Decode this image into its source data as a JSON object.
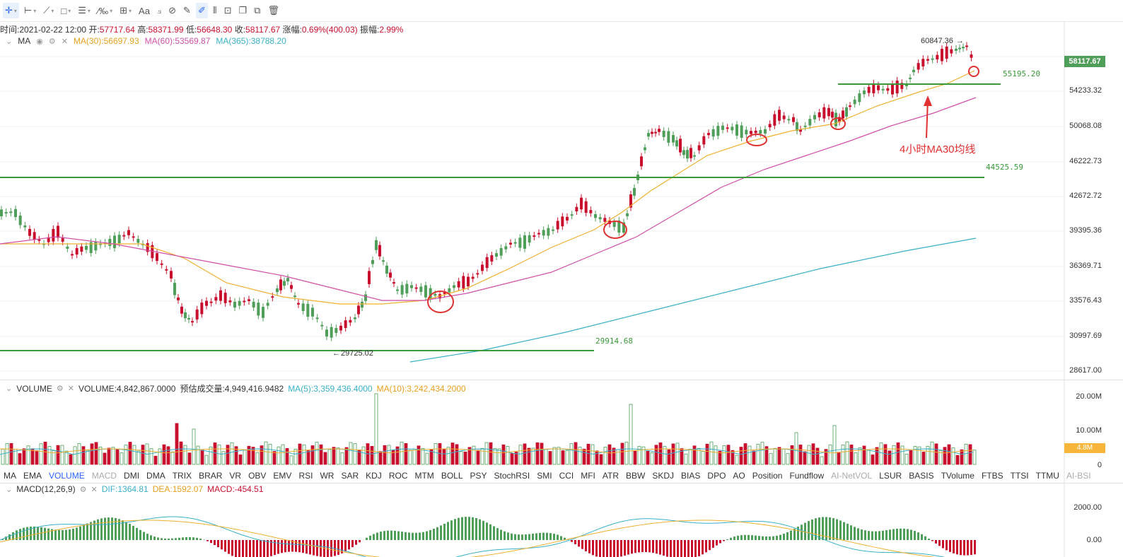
{
  "toolbar": {
    "text_tool": "Aa"
  },
  "ohlc": {
    "time_label": "时间:",
    "time": "2021-02-22 12:00",
    "open_label": "开:",
    "open": "57717.64",
    "high_label": "高:",
    "high": "58371.99",
    "low_label": "低:",
    "low": "56648.30",
    "close_label": "收:",
    "close": "58117.67",
    "change_label": "涨幅:",
    "change": "0.69%(400.03)",
    "amp_label": "振幅:",
    "amp": "2.99%"
  },
  "ma_legend": {
    "name": "MA",
    "ma30": "MA(30):56697.93",
    "ma60": "MA(60):53569.87",
    "ma365": "MA(365):38788.20"
  },
  "price_axis": [
    "58117.67",
    "54233.32",
    "50068.08",
    "46222.73",
    "42672.72",
    "39395.36",
    "36369.71",
    "33576.43",
    "30997.69",
    "28617.00"
  ],
  "current_price": "58117.67",
  "annotations": {
    "high_label": "60847.36",
    "low_label": "29725.02",
    "level_55195": "55195.20",
    "level_44525": "44525.59",
    "level_29914": "29914.68",
    "ma30_note": "4小时MA30均线"
  },
  "volume": {
    "name": "VOLUME",
    "value": "VOLUME:4,842,867.0000",
    "estimate": "预估成交量:4,949,416.9482",
    "ma5": "MA(5):3,359,436.4000",
    "ma10": "MA(10):3,242,434.2000",
    "axis": [
      "20.00M",
      "10.00M",
      "0"
    ],
    "tag": "4.8M"
  },
  "indicator_tabs": [
    {
      "label": "MA",
      "state": "normal"
    },
    {
      "label": "EMA",
      "state": "normal"
    },
    {
      "label": "VOLUME",
      "state": "active"
    },
    {
      "label": "MACD",
      "state": "muted"
    },
    {
      "label": "DMI",
      "state": "normal"
    },
    {
      "label": "DMA",
      "state": "normal"
    },
    {
      "label": "TRIX",
      "state": "normal"
    },
    {
      "label": "BRAR",
      "state": "normal"
    },
    {
      "label": "VR",
      "state": "normal"
    },
    {
      "label": "OBV",
      "state": "normal"
    },
    {
      "label": "EMV",
      "state": "normal"
    },
    {
      "label": "RSI",
      "state": "normal"
    },
    {
      "label": "WR",
      "state": "normal"
    },
    {
      "label": "SAR",
      "state": "normal"
    },
    {
      "label": "KDJ",
      "state": "normal"
    },
    {
      "label": "ROC",
      "state": "normal"
    },
    {
      "label": "MTM",
      "state": "normal"
    },
    {
      "label": "BOLL",
      "state": "normal"
    },
    {
      "label": "PSY",
      "state": "normal"
    },
    {
      "label": "StochRSI",
      "state": "normal"
    },
    {
      "label": "SMI",
      "state": "normal"
    },
    {
      "label": "CCI",
      "state": "normal"
    },
    {
      "label": "MFI",
      "state": "normal"
    },
    {
      "label": "ATR",
      "state": "normal"
    },
    {
      "label": "BBW",
      "state": "normal"
    },
    {
      "label": "SKDJ",
      "state": "normal"
    },
    {
      "label": "BIAS",
      "state": "normal"
    },
    {
      "label": "DPO",
      "state": "normal"
    },
    {
      "label": "AO",
      "state": "normal"
    },
    {
      "label": "Position",
      "state": "normal"
    },
    {
      "label": "Fundflow",
      "state": "normal"
    },
    {
      "label": "AI-NetVOL",
      "state": "muted"
    },
    {
      "label": "LSUR",
      "state": "normal"
    },
    {
      "label": "BASIS",
      "state": "normal"
    },
    {
      "label": "TVolume",
      "state": "normal"
    },
    {
      "label": "FTBS",
      "state": "normal"
    },
    {
      "label": "TTSI",
      "state": "normal"
    },
    {
      "label": "TTMU",
      "state": "normal"
    },
    {
      "label": "AI-BSI",
      "state": "muted"
    }
  ],
  "macd": {
    "name": "MACD(12,26,9)",
    "dif": "DIF:1364.81",
    "dea": "DEA:1592.07",
    "macd": "MACD:-454.51",
    "axis": [
      "2000.00",
      "0.00"
    ]
  },
  "colors": {
    "up": "#4f9e5a",
    "down": "#c8102e",
    "ma30": "#f0b030",
    "ma60": "#d050a8",
    "ma365": "#3ab0c8",
    "level": "#3a9a3a",
    "annotation_red": "#e03030"
  }
}
